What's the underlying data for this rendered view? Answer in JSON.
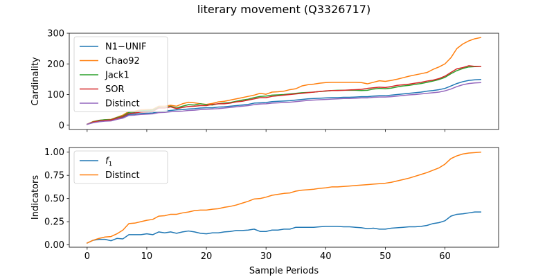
{
  "figure": {
    "title": "literary movement (Q3326717)"
  },
  "colors": {
    "blue": "#1f77b4",
    "orange": "#ff7f0e",
    "green": "#2ca02c",
    "red": "#d62728",
    "purple": "#9467bd"
  },
  "chart_data": [
    {
      "type": "line",
      "panel": "top",
      "ylabel": "Cardinality",
      "xlabel": "",
      "xlim": [
        -3,
        69
      ],
      "ylim": [
        -14,
        300
      ],
      "xticks": [
        0,
        10,
        20,
        30,
        40,
        50,
        60
      ],
      "xtick_labels_shown": false,
      "yticks": [
        0,
        100,
        200,
        300
      ],
      "ytick_labels": [
        "0",
        "100",
        "200",
        "300"
      ],
      "legend": {
        "placement": "upper-left"
      },
      "series": [
        {
          "name": "N1−UNIF",
          "color": "#1f77b4",
          "x0": 0,
          "values": [
            3,
            9,
            13,
            15,
            16,
            22,
            26,
            35,
            36,
            38,
            39,
            40,
            44,
            46,
            48,
            50,
            51,
            53,
            54,
            56,
            57,
            57,
            59,
            60,
            62,
            64,
            66,
            68,
            72,
            73,
            74,
            77,
            78,
            79,
            80,
            82,
            84,
            86,
            87,
            88,
            89,
            90,
            90,
            91,
            91,
            92,
            93,
            93,
            95,
            96,
            96,
            98,
            100,
            102,
            104,
            106,
            108,
            111,
            113,
            116,
            120,
            128,
            136,
            142,
            146,
            148,
            149
          ]
        },
        {
          "name": "Chao92",
          "color": "#ff7f0e",
          "x0": 0,
          "values": [
            3,
            12,
            16,
            18,
            19,
            26,
            33,
            45,
            46,
            50,
            51,
            52,
            62,
            62,
            65,
            62,
            70,
            75,
            73,
            70,
            68,
            71,
            76,
            78,
            82,
            86,
            90,
            94,
            98,
            104,
            101,
            108,
            109,
            111,
            116,
            119,
            128,
            132,
            134,
            137,
            139,
            140,
            140,
            140,
            140,
            140,
            139,
            135,
            140,
            145,
            143,
            146,
            150,
            155,
            160,
            164,
            168,
            172,
            182,
            190,
            200,
            220,
            250,
            265,
            275,
            282,
            286
          ]
        },
        {
          "name": "Jack1",
          "color": "#2ca02c",
          "x0": 0,
          "values": [
            3,
            11,
            16,
            18,
            18,
            25,
            30,
            42,
            43,
            47,
            48,
            49,
            58,
            57,
            62,
            56,
            62,
            67,
            66,
            70,
            67,
            66,
            70,
            72,
            74,
            78,
            82,
            85,
            90,
            94,
            95,
            98,
            99,
            100,
            102,
            104,
            106,
            107,
            108,
            110,
            111,
            113,
            114,
            114,
            114,
            114,
            113,
            114,
            118,
            120,
            119,
            121,
            125,
            128,
            130,
            133,
            136,
            140,
            144,
            149,
            156,
            168,
            178,
            185,
            190,
            191,
            192
          ]
        },
        {
          "name": "SOR",
          "color": "#d62728",
          "x0": 0,
          "values": [
            3,
            10,
            14,
            16,
            17,
            23,
            28,
            38,
            40,
            43,
            44,
            45,
            56,
            56,
            60,
            54,
            58,
            61,
            62,
            64,
            64,
            68,
            70,
            70,
            72,
            76,
            78,
            82,
            86,
            90,
            90,
            94,
            96,
            98,
            100,
            102,
            104,
            106,
            108,
            110,
            112,
            113,
            113,
            114,
            115,
            116,
            117,
            120,
            122,
            124,
            123,
            126,
            130,
            132,
            134,
            137,
            140,
            144,
            147,
            152,
            160,
            172,
            184,
            188,
            194,
            192,
            192
          ]
        },
        {
          "name": "Distinct",
          "color": "#9467bd",
          "x0": 0,
          "values": [
            3,
            8,
            11,
            13,
            14,
            19,
            23,
            32,
            33,
            35,
            36,
            37,
            41,
            42,
            44,
            45,
            46,
            48,
            49,
            51,
            52,
            53,
            54,
            56,
            58,
            60,
            62,
            64,
            67,
            69,
            70,
            72,
            73,
            74,
            75,
            77,
            79,
            81,
            82,
            83,
            84,
            85,
            86,
            87,
            87,
            88,
            89,
            89,
            91,
            92,
            92,
            93,
            95,
            97,
            99,
            100,
            102,
            104,
            106,
            108,
            112,
            118,
            126,
            132,
            136,
            138,
            139
          ]
        }
      ]
    },
    {
      "type": "line",
      "panel": "bottom",
      "ylabel": "Indicators",
      "xlabel": "Sample Periods",
      "xlim": [
        -3,
        69
      ],
      "ylim": [
        -0.025,
        1.05
      ],
      "xticks": [
        0,
        10,
        20,
        30,
        40,
        50,
        60
      ],
      "xtick_labels": [
        "0",
        "10",
        "20",
        "30",
        "40",
        "50",
        "60"
      ],
      "yticks": [
        0,
        0.25,
        0.5,
        0.75,
        1.0
      ],
      "ytick_labels": [
        "0.00",
        "0.25",
        "0.50",
        "0.75",
        "1.00"
      ],
      "legend": {
        "placement": "upper-left"
      },
      "series": [
        {
          "name": "f1",
          "name_display": {
            "base": "f",
            "sub": "1"
          },
          "color": "#1f77b4",
          "x0": 0,
          "values": [
            0.02,
            0.05,
            0.06,
            0.06,
            0.045,
            0.07,
            0.065,
            0.11,
            0.11,
            0.11,
            0.12,
            0.11,
            0.14,
            0.13,
            0.14,
            0.125,
            0.14,
            0.15,
            0.14,
            0.125,
            0.12,
            0.13,
            0.13,
            0.14,
            0.145,
            0.155,
            0.155,
            0.16,
            0.17,
            0.145,
            0.145,
            0.16,
            0.16,
            0.17,
            0.17,
            0.19,
            0.19,
            0.19,
            0.19,
            0.195,
            0.2,
            0.2,
            0.2,
            0.195,
            0.195,
            0.19,
            0.185,
            0.175,
            0.18,
            0.17,
            0.17,
            0.18,
            0.185,
            0.19,
            0.195,
            0.195,
            0.2,
            0.21,
            0.23,
            0.24,
            0.26,
            0.31,
            0.33,
            0.335,
            0.345,
            0.355,
            0.355
          ]
        },
        {
          "name": "Distinct",
          "color": "#ff7f0e",
          "x0": 0,
          "values": [
            0.02,
            0.05,
            0.07,
            0.085,
            0.09,
            0.12,
            0.16,
            0.23,
            0.235,
            0.25,
            0.265,
            0.275,
            0.31,
            0.315,
            0.33,
            0.33,
            0.345,
            0.355,
            0.37,
            0.375,
            0.375,
            0.385,
            0.39,
            0.405,
            0.415,
            0.43,
            0.45,
            0.47,
            0.495,
            0.5,
            0.515,
            0.535,
            0.545,
            0.555,
            0.56,
            0.58,
            0.59,
            0.595,
            0.6,
            0.61,
            0.615,
            0.625,
            0.625,
            0.63,
            0.635,
            0.64,
            0.645,
            0.65,
            0.655,
            0.66,
            0.665,
            0.675,
            0.69,
            0.705,
            0.72,
            0.74,
            0.76,
            0.78,
            0.805,
            0.83,
            0.87,
            0.93,
            0.96,
            0.98,
            0.99,
            0.995,
            1.0
          ]
        }
      ]
    }
  ]
}
